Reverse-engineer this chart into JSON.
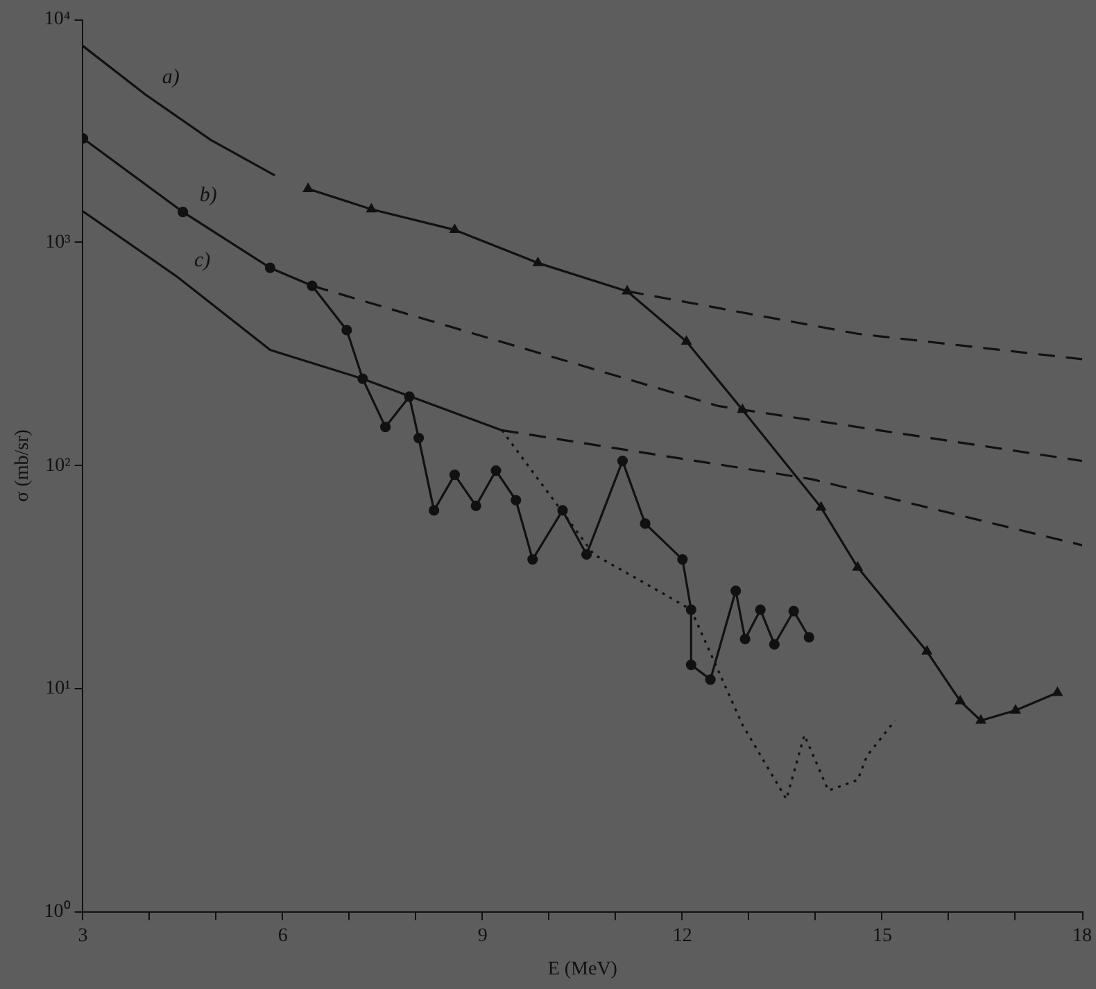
{
  "chart_data": {
    "type": "line",
    "xlabel": "E (MeV)",
    "ylabel": "σ (mb/sr)",
    "log": "y",
    "grid": false,
    "legend": false,
    "xlim": [
      3,
      18
    ],
    "ylim": [
      1,
      10000
    ],
    "xticks": [
      3,
      {
        "value": 4,
        "label": null
      },
      {
        "value": 5,
        "label": null
      },
      6,
      {
        "value": 7,
        "label": null
      },
      {
        "value": 8,
        "label": null
      },
      9,
      {
        "value": 10,
        "label": null
      },
      {
        "value": 11,
        "label": null
      },
      12,
      {
        "value": 13,
        "label": null
      },
      {
        "value": 14,
        "label": null
      },
      15,
      {
        "value": 16,
        "label": null
      },
      {
        "value": 17,
        "label": null
      },
      18
    ],
    "yticks": [
      {
        "value": 1,
        "label": "10⁰"
      },
      {
        "value": 10,
        "label": "10¹"
      },
      {
        "value": 100,
        "label": "10²"
      },
      {
        "value": 1000,
        "label": "10³"
      },
      {
        "value": 10000,
        "label": "10⁴"
      }
    ],
    "series": [
      {
        "name": "a)",
        "color": "#111111",
        "line_style": "solid",
        "marker": "none",
        "x": [
          3,
          3.94,
          4.92,
          5.88
        ],
        "values": [
          7600,
          4600,
          2880,
          2000
        ]
      },
      {
        "color": "#111111",
        "line_style": "solid",
        "marker": "triangle",
        "x": [
          6.38,
          7.33,
          8.58,
          9.83,
          11.17,
          12.06,
          12.9,
          14.08,
          14.63,
          15.67,
          16.17,
          16.48,
          17.0,
          17.63
        ],
        "values": [
          1740,
          1410,
          1140,
          810,
          605,
          360,
          178,
          65,
          35,
          14.7,
          8.8,
          7.2,
          8.0,
          9.6
        ]
      },
      {
        "color": "#111111",
        "line_style": "dashed",
        "marker": "none",
        "x": [
          11.17,
          14.63,
          18
        ],
        "values": [
          605,
          390,
          300
        ]
      },
      {
        "name": "b)",
        "color": "#111111",
        "line_style": "solid",
        "marker": "circle",
        "x": [
          3,
          4.5,
          5.81,
          6.44,
          6.96,
          7.2,
          7.54,
          7.9,
          8.04,
          8.27,
          8.58,
          8.9,
          9.2,
          9.5,
          9.75,
          10.2,
          10.56,
          11.1,
          11.44,
          12.0,
          12.13,
          12.13,
          12.42,
          12.8,
          12.94,
          13.17,
          13.38,
          13.67,
          13.9
        ],
        "values": [
          2930,
          1370,
          770,
          640,
          405,
          245,
          149,
          204,
          133,
          63,
          91,
          66,
          95,
          70,
          38,
          63,
          40,
          105,
          55,
          38,
          22.6,
          12.8,
          11,
          27.5,
          16.7,
          22.6,
          15.8,
          22.3,
          17
        ]
      },
      {
        "color": "#111111",
        "line_style": "dashed",
        "marker": "none",
        "x": [
          6.44,
          12.54,
          18
        ],
        "values": [
          640,
          185,
          105
        ]
      },
      {
        "name": "c)",
        "color": "#111111",
        "line_style": "solid",
        "marker": "none",
        "x": [
          3,
          4.42,
          5.81,
          7.2,
          9.29
        ],
        "values": [
          1380,
          700,
          330,
          245,
          144
        ]
      },
      {
        "color": "#111111",
        "line_style": "dotted",
        "marker": "none",
        "x": [
          9.29,
          10.67,
          11.5,
          12.13,
          12.9,
          13.56,
          13.83,
          14.19,
          14.63,
          14.77,
          15.19
        ],
        "values": [
          144,
          40,
          29,
          22.6,
          6.9,
          3.2,
          6.2,
          3.5,
          3.9,
          5.0,
          7.2
        ]
      },
      {
        "color": "#111111",
        "line_style": "dashed",
        "marker": "none",
        "x": [
          9.29,
          13.94,
          18
        ],
        "values": [
          144,
          87,
          44
        ]
      }
    ]
  }
}
